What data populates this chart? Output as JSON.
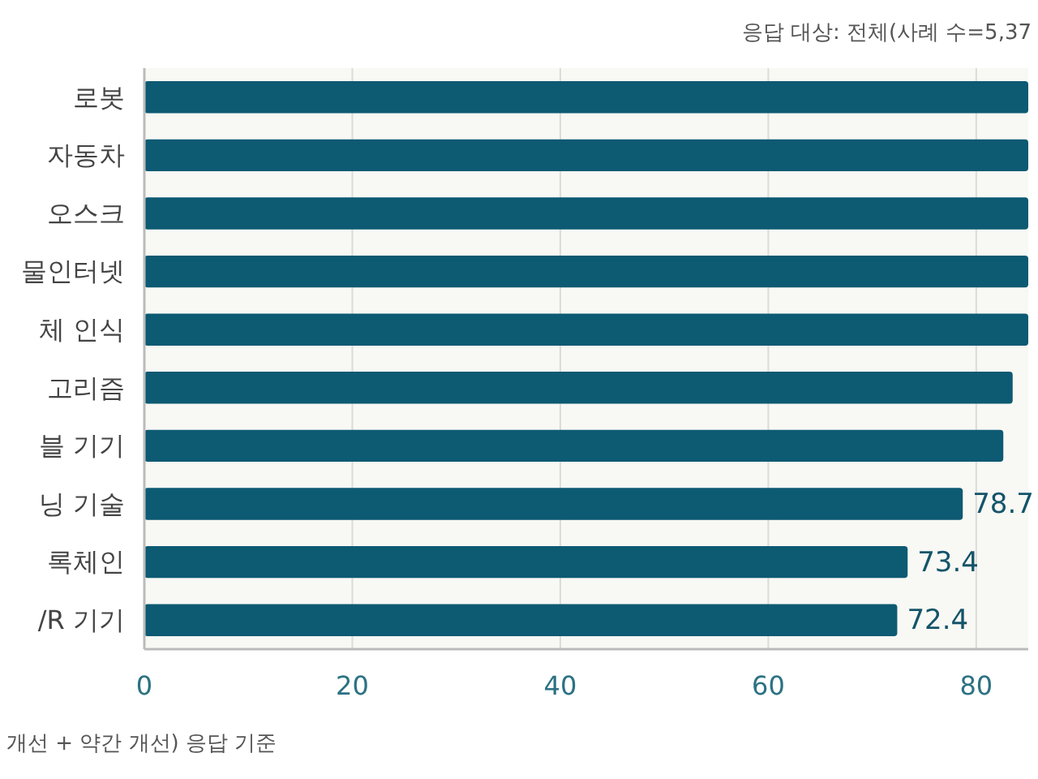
{
  "chart_data": {
    "type": "bar",
    "orientation": "horizontal",
    "subtitle": "응답 대상: 전체(사례 수=5,37",
    "categories": [
      "로봇",
      "자동차",
      "오스크",
      "물인터넷",
      "체 인식",
      "고리즘",
      "블 기기",
      "닝 기술",
      "록체인",
      "/R 기기"
    ],
    "values": [
      85,
      85,
      85,
      85,
      85,
      83.5,
      82.6,
      78.7,
      73.4,
      72.4
    ],
    "value_labels": [
      null,
      null,
      null,
      null,
      null,
      null,
      null,
      "78.7",
      "73.4",
      "72.4"
    ],
    "color": "#0d5a73",
    "xlim": [
      0,
      85
    ],
    "xticks": [
      0,
      20,
      40,
      60,
      80
    ],
    "grid": "x",
    "annotations": [
      "개선 + 약간 개선) 응답 기준"
    ]
  }
}
